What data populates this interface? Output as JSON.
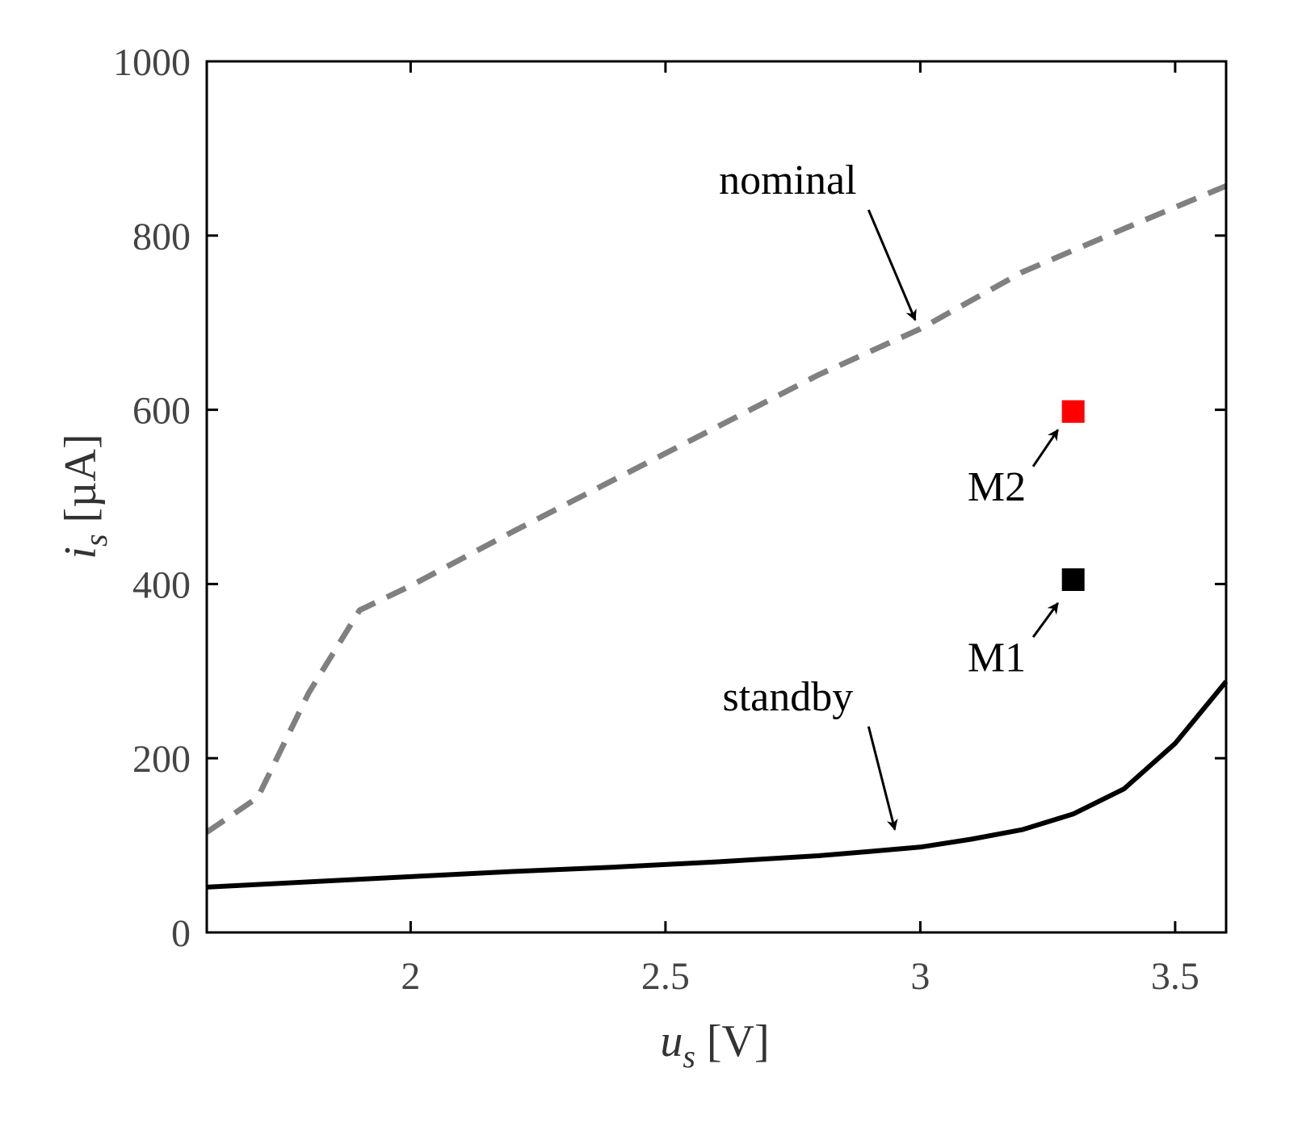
{
  "chart_data": {
    "type": "line",
    "title": "",
    "xlabel": {
      "var": "u",
      "sub": "s",
      "unit": "[V]"
    },
    "ylabel": {
      "var": "i",
      "sub": "s",
      "unit": "[µA]"
    },
    "xlim": [
      1.6,
      3.6
    ],
    "ylim": [
      0,
      1000
    ],
    "xticks": [
      2,
      2.5,
      3,
      3.5
    ],
    "xtick_labels": [
      "2",
      "2.5",
      "3",
      "3.5"
    ],
    "yticks": [
      0,
      200,
      400,
      600,
      800,
      1000
    ],
    "ytick_labels": [
      "0",
      "200",
      "400",
      "600",
      "800",
      "1000"
    ],
    "grid": false,
    "series": [
      {
        "name": "nominal",
        "style": "dashed",
        "color": "#808080",
        "x": [
          1.6,
          1.7,
          1.8,
          1.9,
          2.0,
          2.2,
          2.4,
          2.6,
          2.8,
          3.0,
          3.2,
          3.4,
          3.6
        ],
        "y": [
          115,
          155,
          275,
          370,
          398,
          460,
          520,
          580,
          640,
          693,
          758,
          808,
          857
        ]
      },
      {
        "name": "standby",
        "style": "solid",
        "color": "#000000",
        "x": [
          1.6,
          1.8,
          2.0,
          2.2,
          2.4,
          2.6,
          2.8,
          2.9,
          3.0,
          3.1,
          3.2,
          3.3,
          3.4,
          3.5,
          3.6
        ],
        "y": [
          52,
          58,
          64,
          70,
          75,
          81,
          88,
          93,
          98,
          107,
          118,
          136,
          165,
          217,
          288
        ]
      }
    ],
    "markers": [
      {
        "name": "M1",
        "x": 3.3,
        "y": 405,
        "color": "#000000",
        "shape": "square"
      },
      {
        "name": "M2",
        "x": 3.3,
        "y": 598,
        "color": "#ff0000",
        "shape": "square"
      }
    ],
    "annotations": [
      {
        "text": "nominal",
        "text_x": 2.74,
        "text_y": 848,
        "arrow_to": [
          2.99,
          703
        ]
      },
      {
        "text": "standby",
        "text_x": 2.74,
        "text_y": 255,
        "arrow_to": [
          2.95,
          118
        ]
      },
      {
        "text": "M2",
        "text_x": 3.15,
        "text_y": 496,
        "arrow_to": [
          3.27,
          577
        ]
      },
      {
        "text": "M1",
        "text_x": 3.15,
        "text_y": 300,
        "arrow_to": [
          3.27,
          378
        ]
      }
    ]
  }
}
